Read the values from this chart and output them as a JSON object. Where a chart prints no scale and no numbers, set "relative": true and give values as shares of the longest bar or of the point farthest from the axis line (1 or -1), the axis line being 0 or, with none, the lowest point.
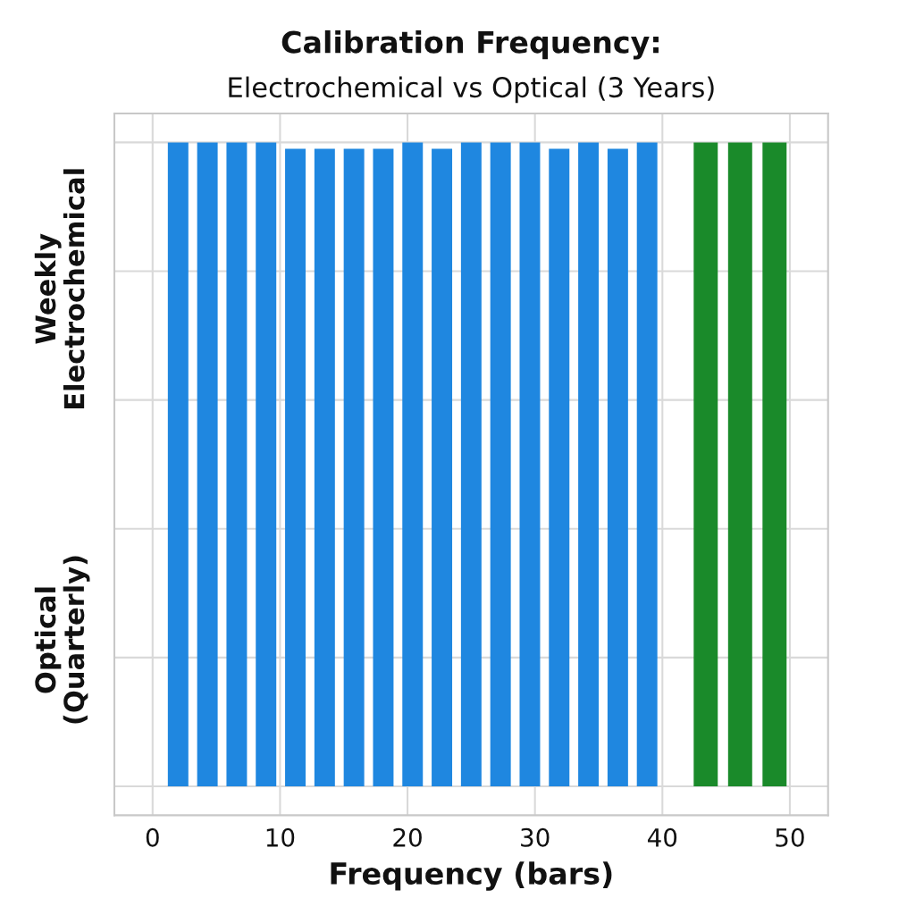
{
  "chart_data": {
    "type": "bar",
    "title": "Calibration Frequency:",
    "subtitle": "Electrochemical vs Optical (3 Years)",
    "xlabel": "Frequency (bars)",
    "annotations": [
      "Weekly\nElectrochemical",
      "Optical\n(Quarterly)"
    ],
    "relative": true,
    "xlim": [
      -3,
      53
    ],
    "xticks": [
      0,
      10,
      20,
      30,
      40,
      50
    ],
    "grid": true,
    "series": [
      {
        "color": "#1f87e0",
        "x": [
          2.0,
          4.3,
          6.6,
          8.9,
          11.2,
          13.5,
          15.8,
          18.1,
          20.4,
          22.7,
          25.0,
          27.3,
          29.6,
          31.9,
          34.2,
          36.5,
          38.8
        ],
        "values": [
          1.0,
          1.0,
          1.0,
          1.0,
          0.99,
          0.99,
          0.99,
          0.99,
          1.0,
          0.99,
          1.0,
          1.0,
          1.0,
          0.99,
          1.0,
          0.99,
          1.0
        ]
      },
      {
        "color": "#1a8a2a",
        "x": [
          43.4,
          46.1,
          48.8
        ],
        "values": [
          1.0,
          1.0,
          1.0
        ]
      }
    ]
  }
}
